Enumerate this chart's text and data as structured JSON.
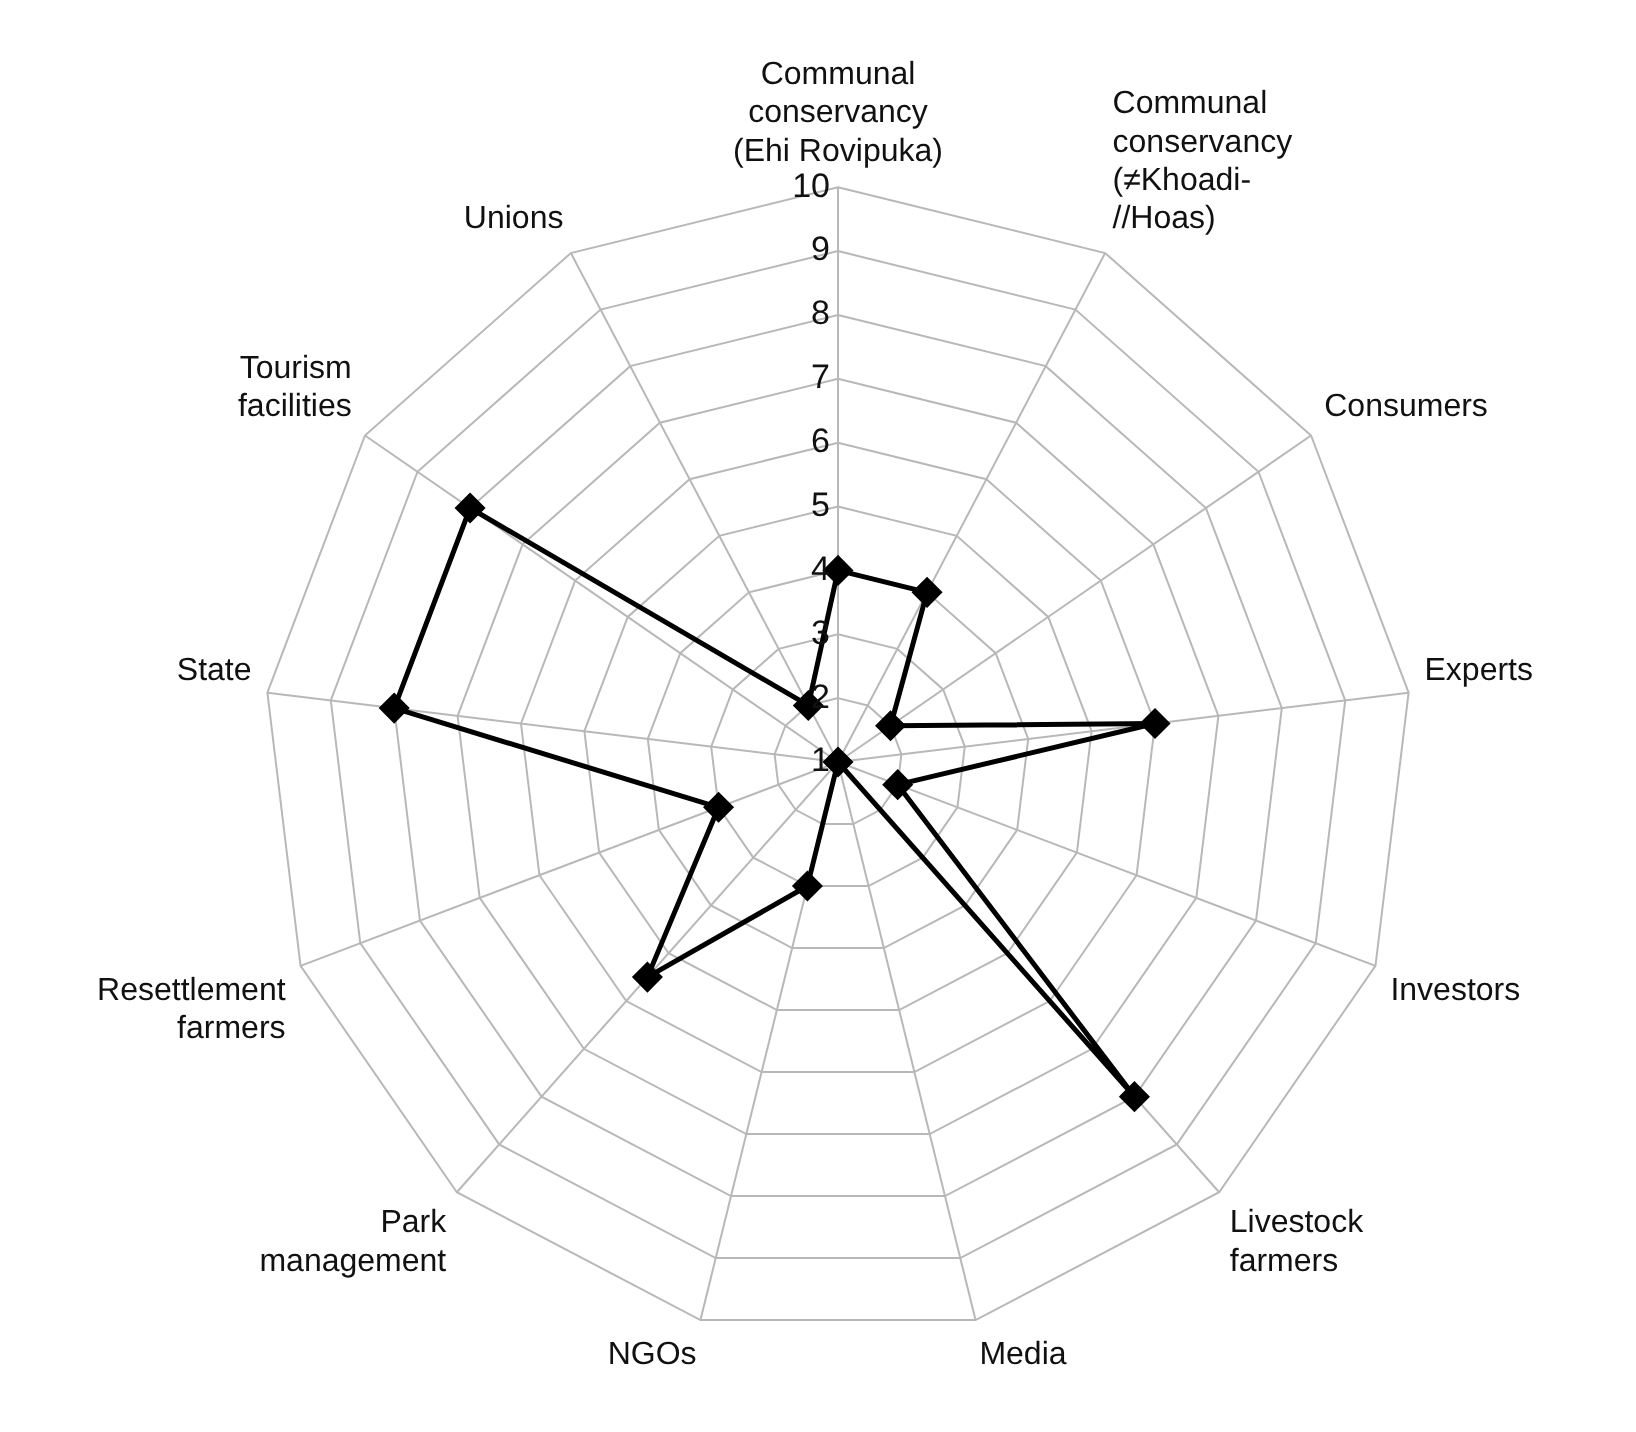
{
  "chart_data": {
    "type": "radar",
    "categories": [
      "Communal\nconservancy\n(Ehi Rovipuka)",
      "Communal\nconservancy\n(≠Khoadi-\n//Hoas)",
      "Consumers",
      "Experts",
      "Investors",
      "Livestock\nfarmers",
      "Media",
      "NGOs",
      "Park\nmanagement",
      "Resettlement\nfarmers",
      "State",
      "Tourism\nfacilities",
      "Unions"
    ],
    "series": [
      {
        "color": "#000000",
        "values": [
          4,
          4,
          2,
          6,
          2,
          8,
          1,
          3,
          5.5,
          3,
          8,
          8,
          2
        ]
      }
    ],
    "ylim": [
      1,
      10
    ],
    "yticks": [
      1,
      2,
      3,
      4,
      5,
      6,
      7,
      8,
      9,
      10
    ],
    "grid": true,
    "legend": false,
    "marker": "diamond",
    "line_style": "solid"
  }
}
